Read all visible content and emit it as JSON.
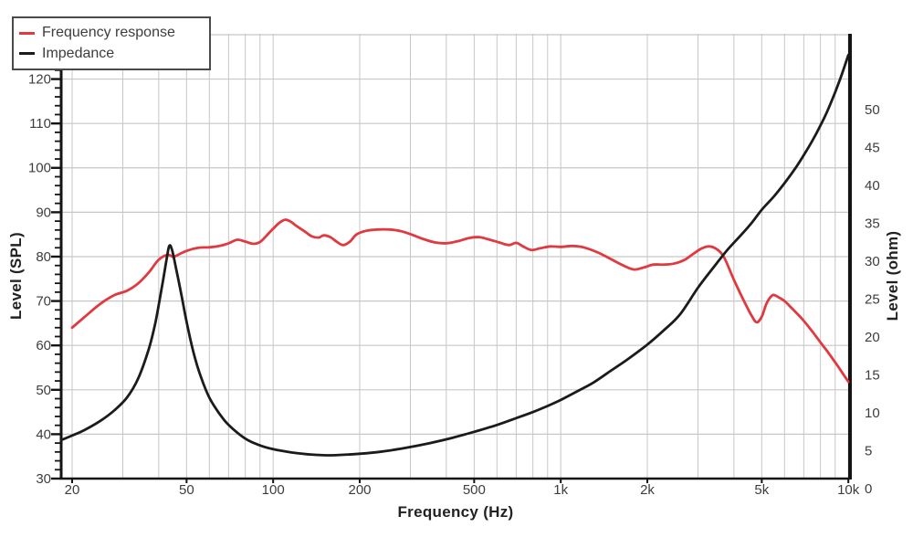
{
  "legend": {
    "items": [
      {
        "label": "Frequency response",
        "color": "#e0393f"
      },
      {
        "label": "Impedance",
        "color": "#1b1b1b"
      }
    ]
  },
  "chart_data": {
    "type": "line",
    "title": "",
    "xlabel": "Frequency (Hz)",
    "ylabel_left": "Level (SPL)",
    "ylabel_right": "Level (ohm)",
    "x_scale": "log",
    "xlim": [
      18.3,
      10120
    ],
    "ylim_left": [
      30,
      130
    ],
    "ylim_right": [
      0,
      60
    ],
    "grid": true,
    "legend_position": "top-left",
    "grid_color": "#c7c7c7",
    "spine_color": "#141414",
    "tick_label_color": "#3d3d3d",
    "x_ticks": [
      {
        "value": 20,
        "label": "20"
      },
      {
        "value": 50,
        "label": "50"
      },
      {
        "value": 100,
        "label": "100"
      },
      {
        "value": 200,
        "label": "200"
      },
      {
        "value": 500,
        "label": "500"
      },
      {
        "value": 1000,
        "label": "1k"
      },
      {
        "value": 2000,
        "label": "2k"
      },
      {
        "value": 5000,
        "label": "5k"
      },
      {
        "value": 10000,
        "label": "10k"
      }
    ],
    "y_ticks_left": [
      30,
      40,
      50,
      60,
      70,
      80,
      90,
      100,
      110,
      120
    ],
    "y_ticks_right": [
      0,
      5,
      10,
      15,
      20,
      25,
      30,
      35,
      40,
      45,
      50
    ],
    "series": [
      {
        "name": "Frequency response",
        "color": "#e0393f",
        "axis": "left",
        "unit": "dB SPL",
        "points": [
          [
            20,
            64
          ],
          [
            22,
            66.3
          ],
          [
            25,
            69.3
          ],
          [
            28,
            71.3
          ],
          [
            31,
            72.3
          ],
          [
            34,
            74
          ],
          [
            37,
            76.5
          ],
          [
            40,
            79.3
          ],
          [
            43,
            80.4
          ],
          [
            45,
            79.9
          ],
          [
            46,
            80.2
          ],
          [
            50,
            81.3
          ],
          [
            55,
            82
          ],
          [
            60,
            82.1
          ],
          [
            65,
            82.4
          ],
          [
            70,
            83
          ],
          [
            75,
            83.8
          ],
          [
            80,
            83.4
          ],
          [
            85,
            82.9
          ],
          [
            90,
            83.3
          ],
          [
            95,
            84.8
          ],
          [
            100,
            86.3
          ],
          [
            105,
            87.6
          ],
          [
            110,
            88.3
          ],
          [
            115,
            87.9
          ],
          [
            120,
            87
          ],
          [
            128,
            85.8
          ],
          [
            136,
            84.6
          ],
          [
            144,
            84.3
          ],
          [
            150,
            84.8
          ],
          [
            158,
            84.4
          ],
          [
            166,
            83.4
          ],
          [
            175,
            82.6
          ],
          [
            185,
            83.4
          ],
          [
            195,
            85
          ],
          [
            210,
            85.8
          ],
          [
            230,
            86.1
          ],
          [
            255,
            86.1
          ],
          [
            280,
            85.7
          ],
          [
            305,
            84.9
          ],
          [
            335,
            83.9
          ],
          [
            365,
            83.2
          ],
          [
            400,
            83
          ],
          [
            440,
            83.5
          ],
          [
            480,
            84.2
          ],
          [
            520,
            84.4
          ],
          [
            560,
            83.9
          ],
          [
            610,
            83.2
          ],
          [
            660,
            82.6
          ],
          [
            700,
            83.1
          ],
          [
            740,
            82.3
          ],
          [
            790,
            81.5
          ],
          [
            850,
            81.9
          ],
          [
            920,
            82.3
          ],
          [
            1000,
            82.2
          ],
          [
            1100,
            82.4
          ],
          [
            1200,
            82.1
          ],
          [
            1350,
            80.9
          ],
          [
            1500,
            79.4
          ],
          [
            1650,
            78
          ],
          [
            1800,
            77.1
          ],
          [
            1950,
            77.6
          ],
          [
            2100,
            78.2
          ],
          [
            2300,
            78.2
          ],
          [
            2500,
            78.5
          ],
          [
            2700,
            79.3
          ],
          [
            2900,
            80.7
          ],
          [
            3100,
            81.9
          ],
          [
            3300,
            82.3
          ],
          [
            3500,
            81.6
          ],
          [
            3700,
            79.8
          ],
          [
            4000,
            74.8
          ],
          [
            4300,
            70.5
          ],
          [
            4600,
            66.8
          ],
          [
            4800,
            65.2
          ],
          [
            5000,
            66.5
          ],
          [
            5200,
            69.5
          ],
          [
            5450,
            71.3
          ],
          [
            5700,
            70.9
          ],
          [
            6000,
            70
          ],
          [
            6400,
            68.2
          ],
          [
            6900,
            66
          ],
          [
            7400,
            63.6
          ],
          [
            8000,
            60.7
          ],
          [
            8600,
            58
          ],
          [
            9200,
            55.3
          ],
          [
            10000,
            51.8
          ]
        ]
      },
      {
        "name": "Impedance",
        "color": "#1b1b1b",
        "axis": "right",
        "unit": "ohm",
        "points": [
          [
            18.3,
            6.4
          ],
          [
            20,
            7
          ],
          [
            22,
            7.7
          ],
          [
            25,
            8.9
          ],
          [
            28,
            10.3
          ],
          [
            31,
            12
          ],
          [
            34,
            14.6
          ],
          [
            37,
            18.5
          ],
          [
            39,
            22
          ],
          [
            41,
            26.5
          ],
          [
            42.5,
            30
          ],
          [
            43.5,
            32
          ],
          [
            44.5,
            31.5
          ],
          [
            46,
            29
          ],
          [
            48,
            25.5
          ],
          [
            50,
            22
          ],
          [
            53,
            17.8
          ],
          [
            56,
            14.8
          ],
          [
            60,
            12
          ],
          [
            65,
            9.9
          ],
          [
            70,
            8.4
          ],
          [
            80,
            6.6
          ],
          [
            90,
            5.7
          ],
          [
            100,
            5.2
          ],
          [
            115,
            4.8
          ],
          [
            135,
            4.5
          ],
          [
            160,
            4.4
          ],
          [
            200,
            4.6
          ],
          [
            240,
            4.9
          ],
          [
            290,
            5.4
          ],
          [
            350,
            6
          ],
          [
            420,
            6.7
          ],
          [
            500,
            7.5
          ],
          [
            600,
            8.4
          ],
          [
            700,
            9.3
          ],
          [
            800,
            10.1
          ],
          [
            900,
            10.9
          ],
          [
            1000,
            11.7
          ],
          [
            1150,
            12.9
          ],
          [
            1300,
            14
          ],
          [
            1500,
            15.6
          ],
          [
            1700,
            17
          ],
          [
            2000,
            19
          ],
          [
            2300,
            21
          ],
          [
            2600,
            23
          ],
          [
            3000,
            26.5
          ],
          [
            3400,
            29.2
          ],
          [
            3800,
            31.5
          ],
          [
            4200,
            33.3
          ],
          [
            4600,
            35
          ],
          [
            5000,
            36.8
          ],
          [
            5500,
            38.5
          ],
          [
            6000,
            40.3
          ],
          [
            6500,
            42.1
          ],
          [
            7000,
            44
          ],
          [
            7500,
            45.9
          ],
          [
            8000,
            47.9
          ],
          [
            8500,
            50
          ],
          [
            9000,
            52.3
          ],
          [
            9500,
            54.7
          ],
          [
            10000,
            57.2
          ]
        ]
      }
    ],
    "annotations": {
      "impedance_resonance_peak": {
        "frequency_hz": 43.5,
        "ohm": 32
      },
      "impedance_minimum": {
        "frequency_hz": 150,
        "ohm": 4.5
      },
      "impedance_at_10k": {
        "ohm": 57
      },
      "spl_max": {
        "frequency_hz": 110,
        "db": 88.3
      },
      "spl_dip": {
        "frequency_hz": 4800,
        "db": 65.2
      }
    }
  }
}
